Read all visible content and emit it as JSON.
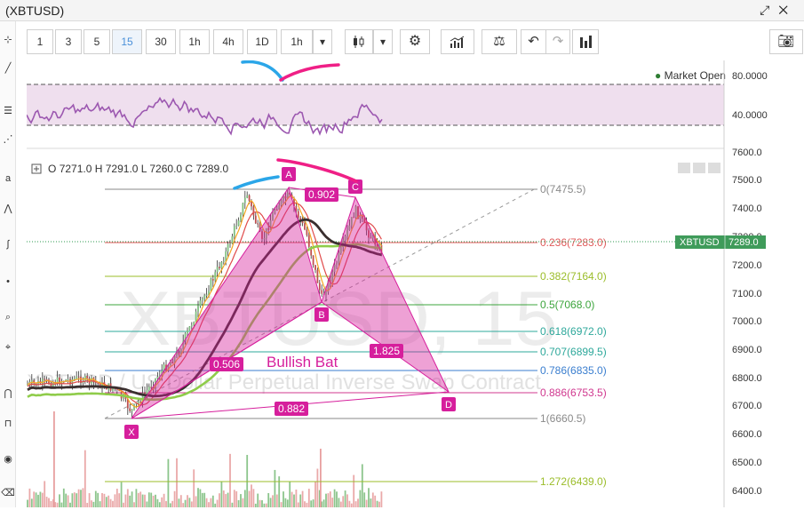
{
  "window": {
    "title": "(XBTUSD)",
    "pin_icon": "pin-icon",
    "expand_icon": "expand-icon"
  },
  "toolbar": {
    "intervals": [
      "1",
      "3",
      "5",
      "15",
      "30",
      "1h",
      "4h",
      "1D",
      "1h"
    ],
    "active_interval": "15",
    "icons": [
      "candlestick-icon",
      "gear-icon",
      "indicators-icon",
      "balance-icon",
      "undo-icon",
      "redo-icon",
      "bar-chart-icon",
      "camera-icon"
    ]
  },
  "rsi": {
    "status": "Market Open",
    "status_color": "#2e7d32",
    "ticks": [
      "80.0000",
      "40.0000"
    ]
  },
  "ohlc": {
    "o_label": "O",
    "o": "7271.0",
    "h_label": "H",
    "h": "7291.0",
    "l_label": "L",
    "l": "7260.0",
    "c_label": "C",
    "c": "7289.0"
  },
  "price_axis": {
    "ticks": [
      "7600.0",
      "7500.0",
      "7400.0",
      "7300.0",
      "7200.0",
      "7100.0",
      "7000.0",
      "6900.0",
      "6800.0",
      "6700.0",
      "6600.0",
      "6500.0",
      "6400.0"
    ],
    "current_symbol": "XBTUSD",
    "current_price": "7289.0",
    "current_color": "#3f9b5a"
  },
  "watermark": {
    "symbol": "XBTUSD, 15",
    "description": "XBTUSD / US Dollar Perpetual Inverse Swap Contract"
  },
  "fib": [
    {
      "label": "0(7475.5)",
      "color": "#8a8a8a"
    },
    {
      "label": "0.236(7283.0)",
      "color": "#e05a5a"
    },
    {
      "label": "0.382(7164.0)",
      "color": "#9bbd2a"
    },
    {
      "label": "0.5(7068.0)",
      "color": "#3ca53c"
    },
    {
      "label": "0.618(6972.0)",
      "color": "#2ea89b"
    },
    {
      "label": "0.707(6899.5)",
      "color": "#2ea89b"
    },
    {
      "label": "0.786(6835.0)",
      "color": "#3a7ecf"
    },
    {
      "label": "0.886(6753.5)",
      "color": "#d0388f"
    },
    {
      "label": "1(6660.5)",
      "color": "#8a8a8a"
    },
    {
      "label": "1.272(6439.0)",
      "color": "#9bbd2a"
    }
  ],
  "pattern": {
    "name": "Bullish Bat",
    "color": "#d61f9c",
    "points": [
      "X",
      "A",
      "B",
      "C",
      "D"
    ],
    "ratios": {
      "ab": "0.506",
      "bc": "0.902",
      "cd": "1.825",
      "xd": "0.882"
    }
  }
}
